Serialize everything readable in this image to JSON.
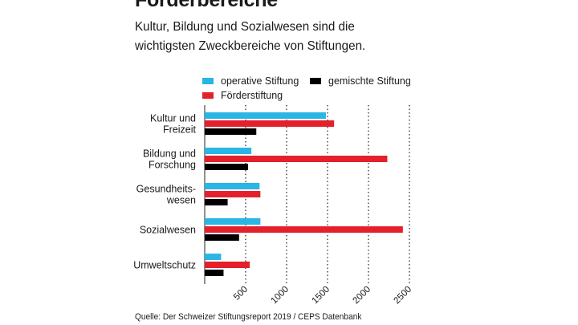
{
  "heading": {
    "title": "Förderbereiche",
    "subtitle": "Kultur, Bildung und Sozialwesen sind die wichtigsten Zweckbereiche von Stiftungen."
  },
  "source": "Quelle: Der Schweizer Stiftungsreport 2019 / CEPS Datenbank",
  "chart_data": {
    "type": "bar",
    "orientation": "horizontal",
    "categories": [
      [
        "Kultur und",
        "Freizeit"
      ],
      [
        "Bildung und",
        "Forschung"
      ],
      [
        "Gesundheits-",
        "wesen"
      ],
      [
        "Sozialwesen"
      ],
      [
        "Umweltschutz"
      ]
    ],
    "series": [
      {
        "name": "operative Stiftung",
        "color": "#29b6e4",
        "values": [
          1480,
          570,
          670,
          680,
          200
        ]
      },
      {
        "name": "Förderstiftung",
        "color": "#e4202a",
        "values": [
          1580,
          2230,
          680,
          2420,
          550
        ]
      },
      {
        "name": "gemischte Stiftung",
        "color": "#000000",
        "values": [
          630,
          530,
          280,
          420,
          230
        ]
      }
    ],
    "legend_order": [
      "operative Stiftung",
      "gemischte Stiftung",
      "Förderstiftung"
    ],
    "legend_position": "top",
    "xlim": [
      0,
      2500
    ],
    "xticks": [
      "500",
      "1000",
      "1500",
      "2000",
      "2500"
    ],
    "grid": "dotted vertical"
  }
}
